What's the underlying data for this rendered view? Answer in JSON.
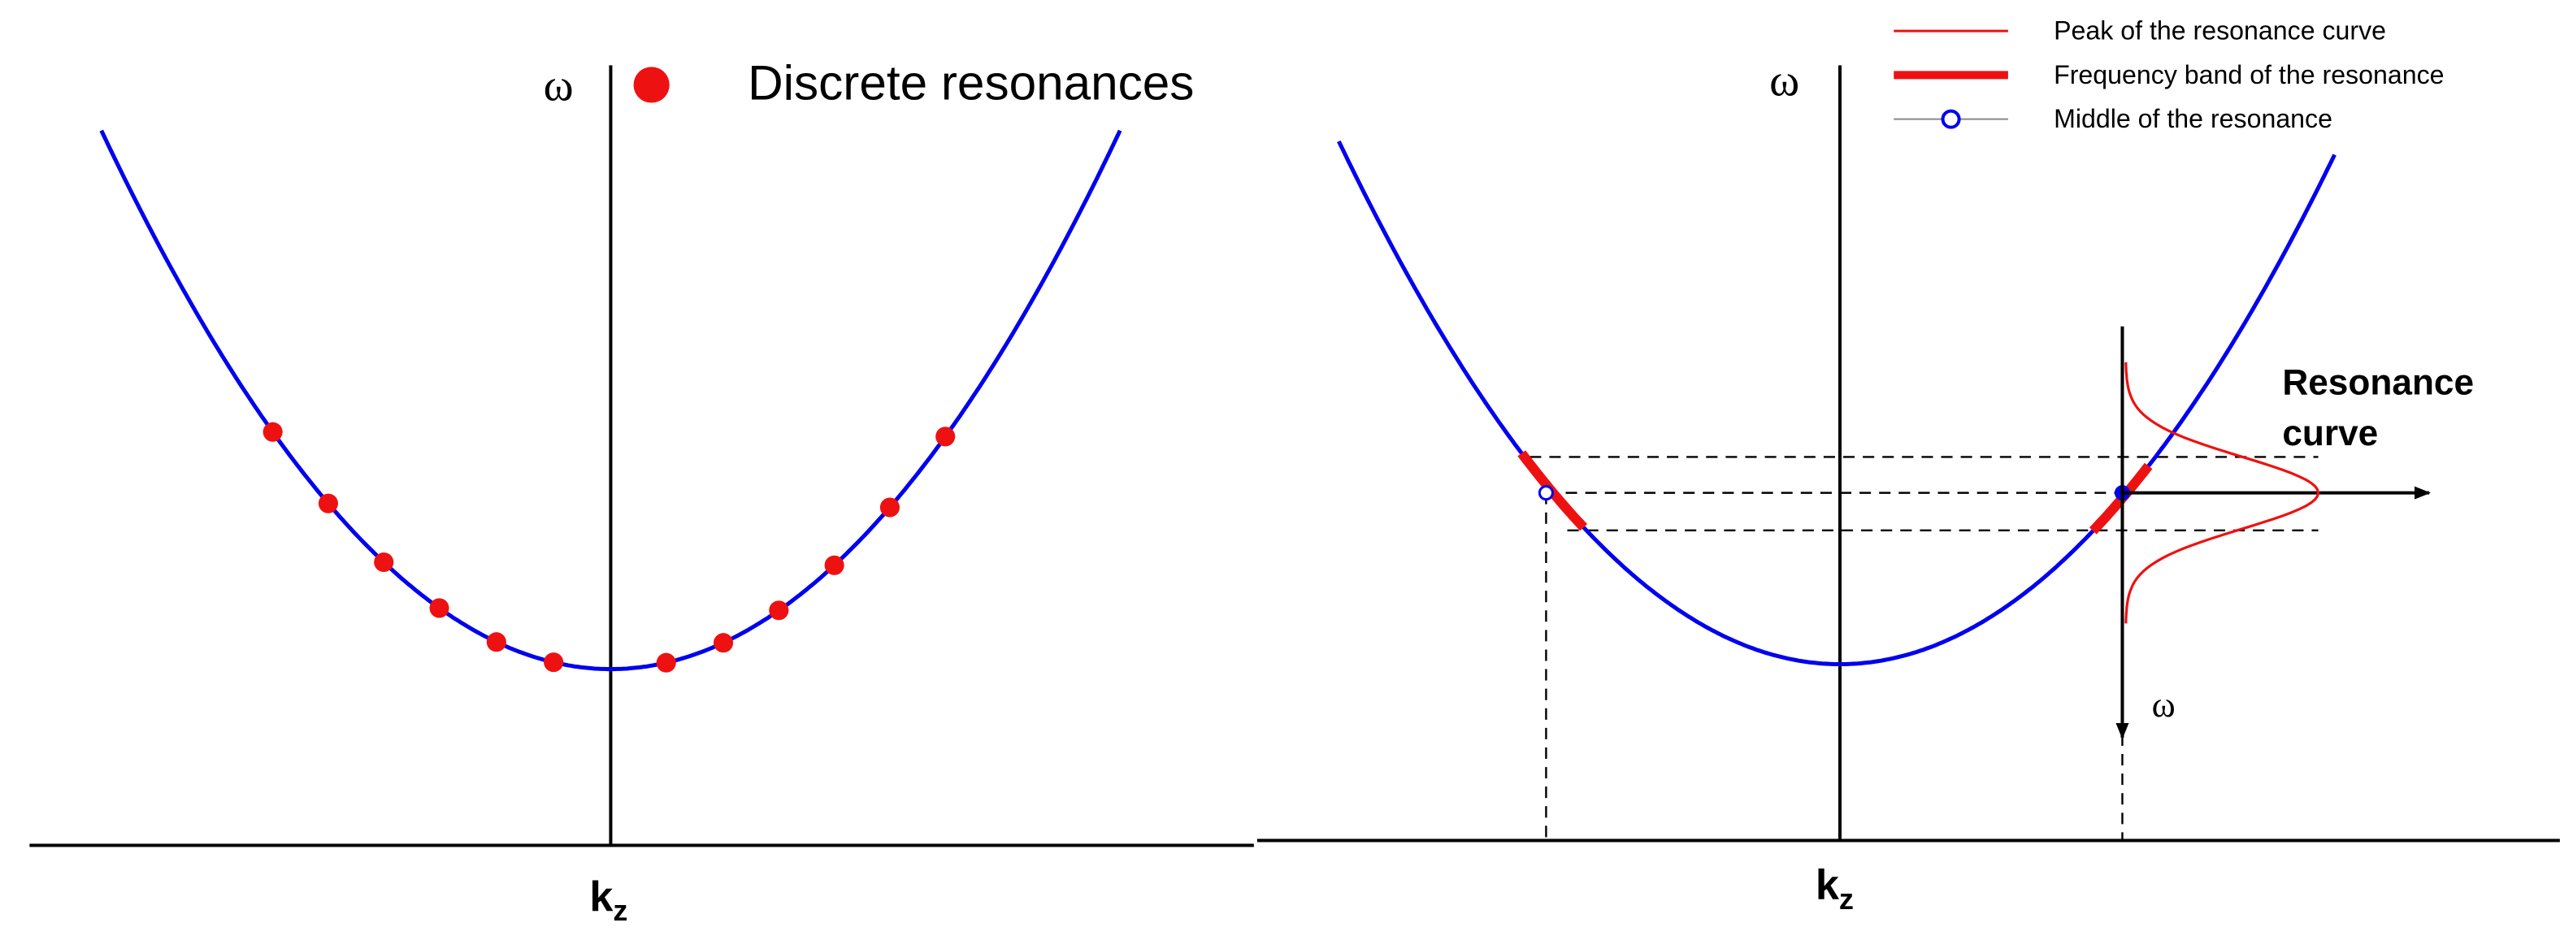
{
  "left_panel": {
    "axis_y_label": "ω",
    "axis_x_label": "k",
    "axis_x_subscript": "z",
    "legend": "Discrete resonances"
  },
  "right_panel": {
    "axis_y_label": "ω",
    "axis_x_label": "k",
    "axis_x_subscript": "z",
    "legend": [
      "Peak of the resonance curve",
      "Frequency band of the resonance",
      "Middle of the resonance"
    ],
    "resonance_label": [
      "Resonance",
      "curve"
    ],
    "resonance_axis_label": "ω"
  }
}
